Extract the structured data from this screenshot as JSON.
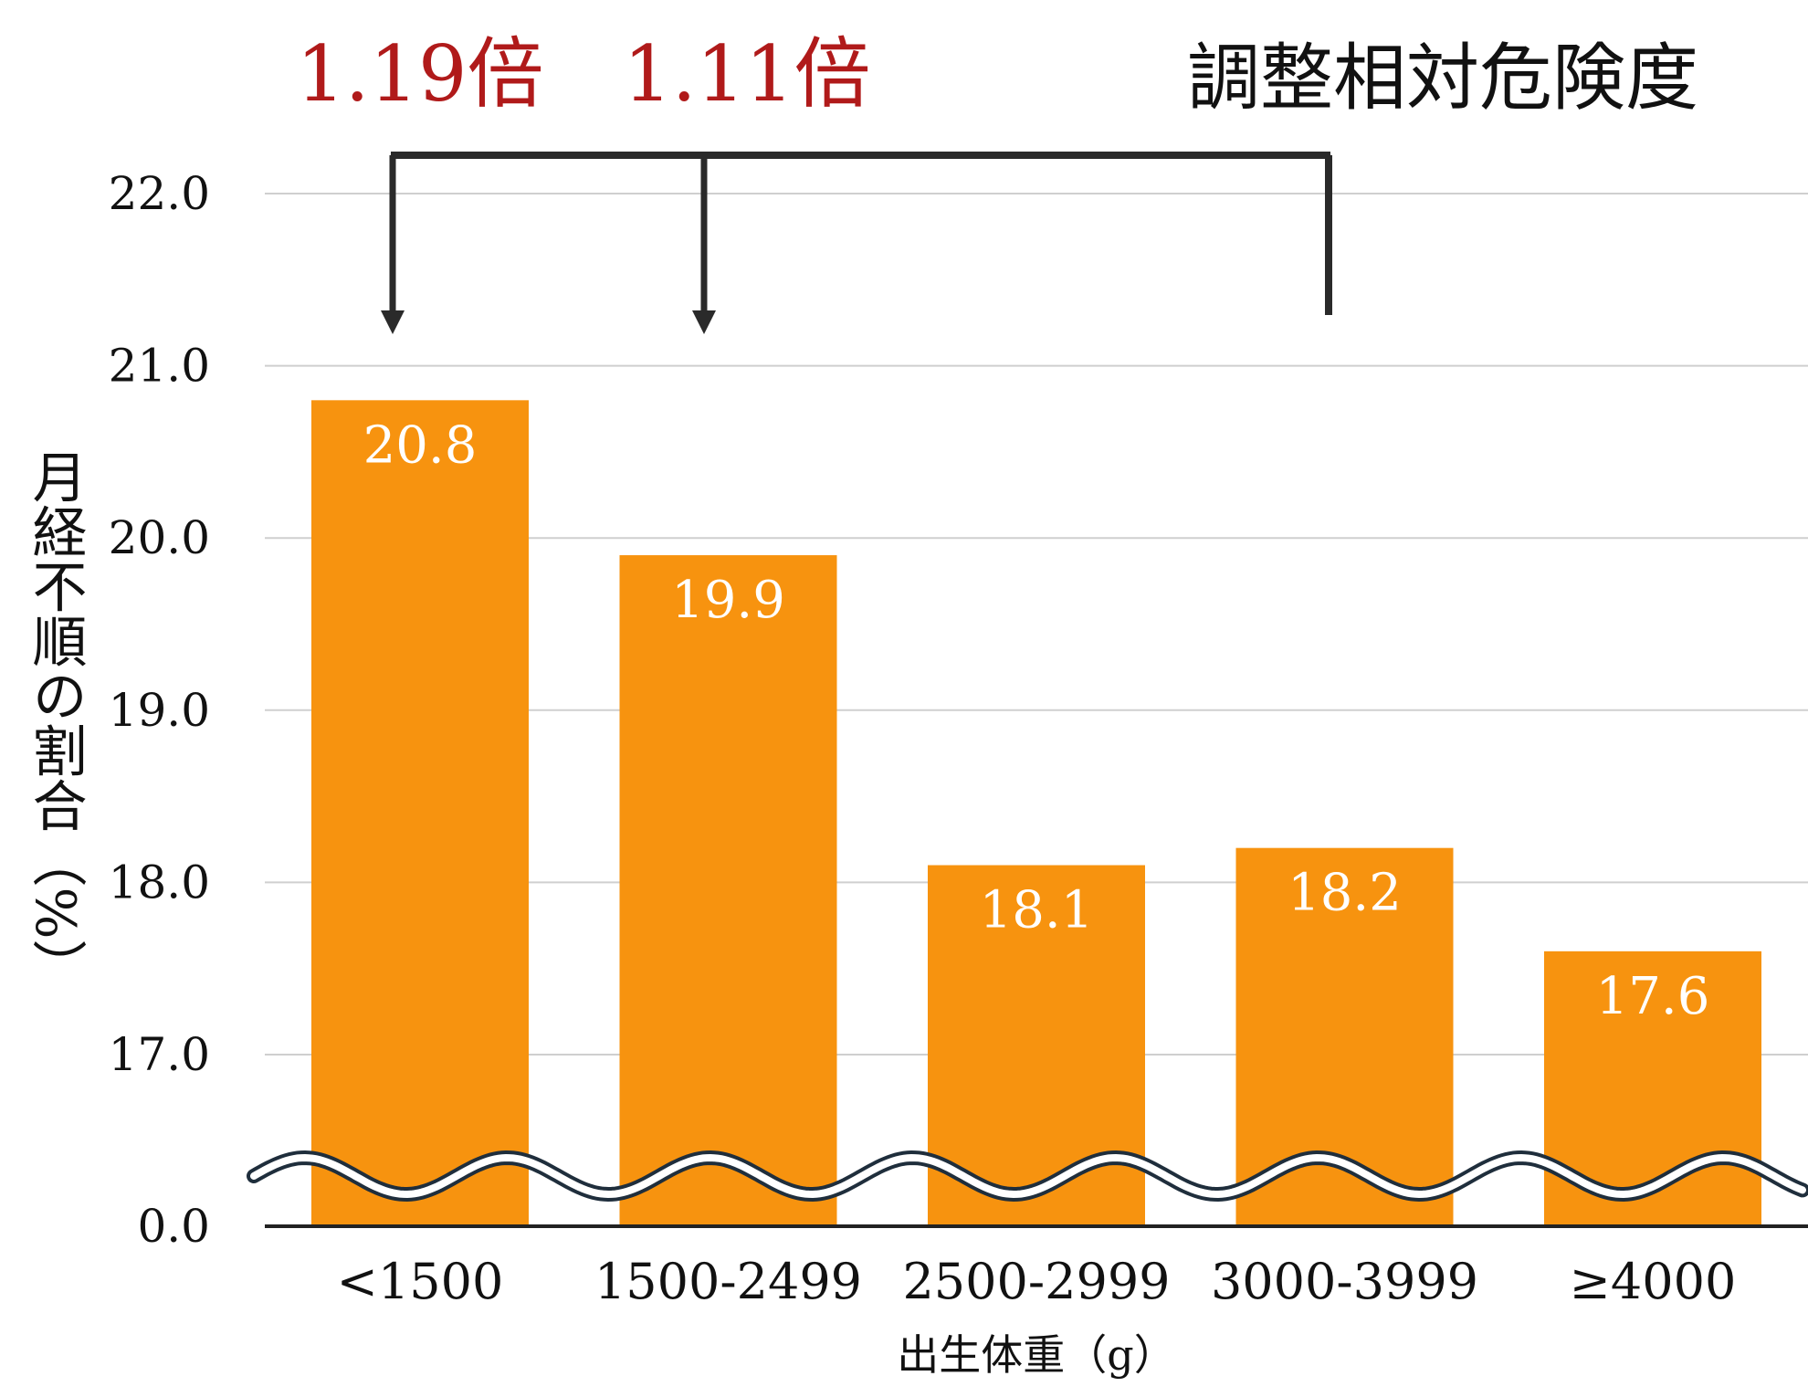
{
  "chart_data": {
    "type": "bar",
    "title": "調整相対危険度",
    "xlabel": "出生体重（g）",
    "ylabel": "月経不順の割合（%）",
    "categories": [
      "<1500",
      "1500-2499",
      "2500-2999",
      "3000-3999",
      "≥4000"
    ],
    "values": [
      20.8,
      19.9,
      18.1,
      18.2,
      17.6
    ],
    "value_labels": [
      "20.8",
      "19.9",
      "18.1",
      "18.2",
      "17.6"
    ],
    "yticks": [
      {
        "value": 0.0,
        "label": "0.0"
      },
      {
        "value": 17.0,
        "label": "17.0"
      },
      {
        "value": 18.0,
        "label": "18.0"
      },
      {
        "value": 19.0,
        "label": "19.0"
      },
      {
        "value": 20.0,
        "label": "20.0"
      },
      {
        "value": 21.0,
        "label": "21.0"
      },
      {
        "value": 22.0,
        "label": "22.0"
      }
    ],
    "ylim": [
      16.0,
      22.0
    ],
    "axis_break": true,
    "gridlines": true,
    "annotations": [
      {
        "label": "1.19倍",
        "from_category": "3000-3999",
        "to_category": "<1500"
      },
      {
        "label": "1.11倍",
        "from_category": "3000-3999",
        "to_category": "1500-2499"
      }
    ],
    "colors": {
      "bar": "#F7930F",
      "annotation": "#B01A1A",
      "grid": "#CFCFCF",
      "axis": "#222222",
      "bracket": "#2A2A2A",
      "wave": "#1F2E3C"
    }
  }
}
